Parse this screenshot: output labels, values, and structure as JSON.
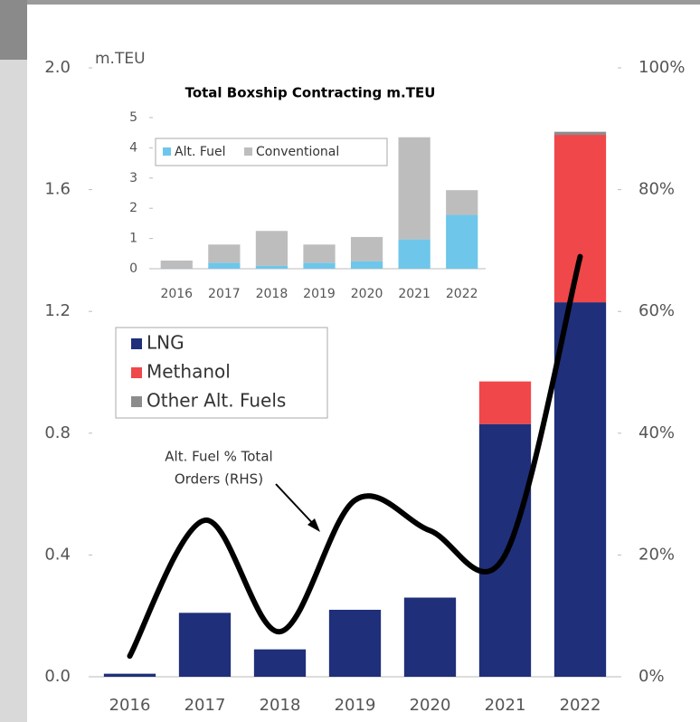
{
  "chart_data": [
    {
      "type": "bar",
      "stacked": true,
      "y_label": "m.TEU",
      "annotation": [
        "Alt. Fuel % Total",
        "Orders (RHS)"
      ],
      "categories": [
        "2016",
        "2017",
        "2018",
        "2019",
        "2020",
        "2021",
        "2022"
      ],
      "series": [
        {
          "name": "LNG",
          "color": "#1f2f7a",
          "values": [
            0.01,
            0.21,
            0.09,
            0.22,
            0.26,
            0.83,
            1.23
          ]
        },
        {
          "name": "Methanol",
          "color": "#f0474a",
          "values": [
            0,
            0,
            0,
            0,
            0,
            0.14,
            0.55
          ]
        },
        {
          "name": "Other Alt. Fuels",
          "color": "#8c8c8c",
          "values": [
            0,
            0,
            0,
            0,
            0,
            0,
            0.01
          ]
        },
        {
          "type": "line",
          "axis": "y2",
          "color": "#000000",
          "values": [
            3.4,
            25.7,
            7.4,
            29,
            24,
            20,
            69
          ]
        }
      ],
      "ylim": [
        0,
        2
      ],
      "yticks": [
        {
          "value": 0,
          "label": "0.0"
        },
        0.4,
        0.8,
        1.2,
        1.6,
        {
          "value": 2,
          "label": "2.0"
        }
      ],
      "y2lim": [
        0,
        100
      ],
      "y2ticks": [
        {
          "value": 0,
          "label": "0%"
        },
        {
          "value": 20,
          "label": "20%"
        },
        {
          "value": 40,
          "label": "40%"
        },
        {
          "value": 60,
          "label": "60%"
        },
        {
          "value": 80,
          "label": "80%"
        },
        {
          "value": 100,
          "label": "100%"
        }
      ],
      "grid": false
    },
    {
      "type": "bar",
      "stacked": true,
      "title": "Total Boxship Contracting m.TEU",
      "categories": [
        "2016",
        "2017",
        "2018",
        "2019",
        "2020",
        "2021",
        "2022"
      ],
      "series": [
        {
          "name": "Alt. Fuel",
          "color": "#6ec6ea",
          "values": [
            0.01,
            0.2,
            0.1,
            0.2,
            0.25,
            0.97,
            1.78
          ]
        },
        {
          "name": "Conventional",
          "color": "#bdbdbd",
          "values": [
            0.26,
            0.6,
            1.15,
            0.6,
            0.8,
            3.38,
            0.82
          ]
        }
      ],
      "ylim": [
        0,
        5
      ],
      "yticks": [
        0,
        1,
        2,
        3,
        4,
        5
      ],
      "grid": false
    }
  ]
}
